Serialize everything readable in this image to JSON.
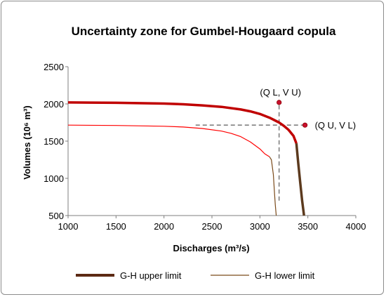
{
  "chart_data": {
    "type": "line",
    "title": "Uncertainty zone for Gumbel-Hougaard  copula",
    "xlabel": "Discharges (m³/s)",
    "ylabel": "Volumes (10⁶ m³)",
    "xlim": [
      1000,
      4000
    ],
    "ylim": [
      500,
      2500
    ],
    "xticks": [
      "1000",
      "1500",
      "2000",
      "2500",
      "3000",
      "3500",
      "4000"
    ],
    "yticks": [
      "500",
      "1000",
      "1500",
      "2000",
      "2500"
    ],
    "grid": false,
    "legend_position": "bottom",
    "series": [
      {
        "name": "G-H upper limit",
        "color": "#c00000",
        "lower_color": "#5c3a1e",
        "x": [
          1000,
          1500,
          2000,
          2200,
          2400,
          2600,
          2800,
          2900,
          3000,
          3100,
          3200,
          3250,
          3300,
          3350,
          3380,
          3400,
          3420,
          3440,
          3460
        ],
        "y": [
          2020,
          2015,
          2005,
          1995,
          1980,
          1960,
          1925,
          1900,
          1865,
          1815,
          1750,
          1705,
          1650,
          1570,
          1470,
          1200,
          950,
          700,
          500
        ]
      },
      {
        "name": "G-H lower limit",
        "color": "#ff0000",
        "lower_color": "#7a4a1a",
        "x": [
          1000,
          1500,
          2000,
          2200,
          2400,
          2600,
          2700,
          2800,
          2900,
          3000,
          3050,
          3100,
          3120,
          3140,
          3150,
          3160,
          3170
        ],
        "y": [
          1715,
          1710,
          1700,
          1690,
          1670,
          1635,
          1605,
          1560,
          1490,
          1395,
          1330,
          1290,
          1250,
          1050,
          850,
          650,
          500
        ]
      }
    ],
    "annotations": [
      {
        "label": "(Q L, V U)",
        "x": 3200,
        "y": 2020
      },
      {
        "label": "(Q U, V L)",
        "x": 3470,
        "y": 1715
      }
    ],
    "reference_lines": [
      {
        "orientation": "vertical",
        "x": 3200,
        "y_from": 700,
        "y_to": 2020
      },
      {
        "orientation": "horizontal",
        "y": 1715,
        "x_from": 2330,
        "x_to": 3470
      }
    ],
    "point_color": "#c8102e"
  },
  "legend": {
    "upper_label": "G-H upper limit",
    "lower_label": "G-H lower limit"
  }
}
